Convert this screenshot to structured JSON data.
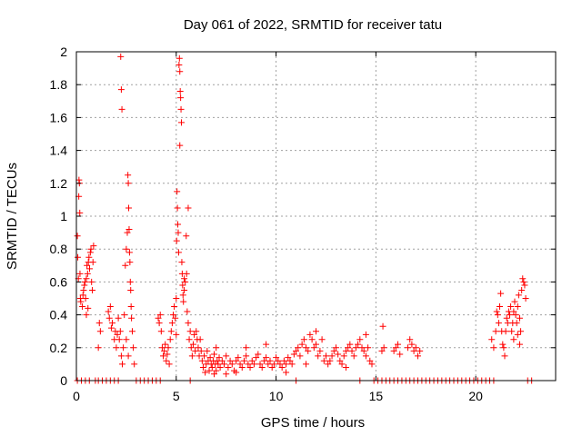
{
  "chart_data": {
    "type": "scatter",
    "title": "Day 061 of 2022, SRMTID for receiver tatu",
    "xlabel": "GPS time / hours",
    "ylabel": "SRMTID / TECUs",
    "xlim": [
      0,
      24
    ],
    "ylim": [
      0,
      2
    ],
    "xticks": [
      0,
      5,
      10,
      15,
      20
    ],
    "yticks": [
      0,
      0.2,
      0.4,
      0.6,
      0.8,
      1,
      1.2,
      1.4,
      1.6,
      1.8,
      2
    ],
    "xtick_labels": [
      "0",
      "5",
      "10",
      "15",
      "20"
    ],
    "ytick_labels": [
      "0",
      "0.2",
      "0.4",
      "0.6",
      "0.8",
      "1",
      "1.2",
      "1.4",
      "1.6",
      "1.8",
      "2"
    ],
    "grid": true,
    "marker": "+",
    "color": "#ff0000",
    "points": [
      [
        0.05,
        0.88
      ],
      [
        0.07,
        0.75
      ],
      [
        0.1,
        0.62
      ],
      [
        0.12,
        1.12
      ],
      [
        0.13,
        1.22
      ],
      [
        0.15,
        1.2
      ],
      [
        0.17,
        1.02
      ],
      [
        0.18,
        0.65
      ],
      [
        0.2,
        0.5
      ],
      [
        0.22,
        0.48
      ],
      [
        0.3,
        0.45
      ],
      [
        0.33,
        0.52
      ],
      [
        0.36,
        0.55
      ],
      [
        0.4,
        0.58
      ],
      [
        0.43,
        0.6
      ],
      [
        0.46,
        0.5
      ],
      [
        0.5,
        0.62
      ],
      [
        0.53,
        0.7
      ],
      [
        0.56,
        0.65
      ],
      [
        0.6,
        0.72
      ],
      [
        0.63,
        0.75
      ],
      [
        0.66,
        0.68
      ],
      [
        0.7,
        0.78
      ],
      [
        0.73,
        0.8
      ],
      [
        0.76,
        0.6
      ],
      [
        0.8,
        0.55
      ],
      [
        0.83,
        0.72
      ],
      [
        0.86,
        0.82
      ],
      [
        0.5,
        0.4
      ],
      [
        0.58,
        0.44
      ],
      [
        1.1,
        0.2
      ],
      [
        1.15,
        0.35
      ],
      [
        1.2,
        0.3
      ],
      [
        1.6,
        0.42
      ],
      [
        1.65,
        0.38
      ],
      [
        1.7,
        0.45
      ],
      [
        1.75,
        0.32
      ],
      [
        1.8,
        0.35
      ],
      [
        1.9,
        0.25
      ],
      [
        1.95,
        0.3
      ],
      [
        2.0,
        0.2
      ],
      [
        2.05,
        0.28
      ],
      [
        2.1,
        0.38
      ],
      [
        2.15,
        0.25
      ],
      [
        2.2,
        0.3
      ],
      [
        2.25,
        0.15
      ],
      [
        2.3,
        0.1
      ],
      [
        2.35,
        0.2
      ],
      [
        2.22,
        1.97
      ],
      [
        2.25,
        1.77
      ],
      [
        2.28,
        1.65
      ],
      [
        2.4,
        0.4
      ],
      [
        2.45,
        0.7
      ],
      [
        2.5,
        0.8
      ],
      [
        2.55,
        0.9
      ],
      [
        2.58,
        1.25
      ],
      [
        2.6,
        1.2
      ],
      [
        2.62,
        1.05
      ],
      [
        2.64,
        0.92
      ],
      [
        2.66,
        0.78
      ],
      [
        2.68,
        0.72
      ],
      [
        2.7,
        0.6
      ],
      [
        2.72,
        0.55
      ],
      [
        2.74,
        0.45
      ],
      [
        2.76,
        0.38
      ],
      [
        2.8,
        0.3
      ],
      [
        2.85,
        0.2
      ],
      [
        2.9,
        0.1
      ],
      [
        2.5,
        0.25
      ],
      [
        2.6,
        0.15
      ],
      [
        4.1,
        0.38
      ],
      [
        4.15,
        0.35
      ],
      [
        4.2,
        0.4
      ],
      [
        4.25,
        0.3
      ],
      [
        4.3,
        0.2
      ],
      [
        4.35,
        0.15
      ],
      [
        4.4,
        0.18
      ],
      [
        4.45,
        0.22
      ],
      [
        4.5,
        0.12
      ],
      [
        4.55,
        0.16
      ],
      [
        4.6,
        0.2
      ],
      [
        4.65,
        0.1
      ],
      [
        4.7,
        0.25
      ],
      [
        4.75,
        0.3
      ],
      [
        4.8,
        0.35
      ],
      [
        4.85,
        0.4
      ],
      [
        4.9,
        0.45
      ],
      [
        4.95,
        0.38
      ],
      [
        5.0,
        0.5
      ],
      [
        5.02,
        0.85
      ],
      [
        5.04,
        1.15
      ],
      [
        5.06,
        1.05
      ],
      [
        5.08,
        0.95
      ],
      [
        5.1,
        0.9
      ],
      [
        5.12,
        0.78
      ],
      [
        5.14,
        1.92
      ],
      [
        5.16,
        1.96
      ],
      [
        5.18,
        1.88
      ],
      [
        5.2,
        1.76
      ],
      [
        5.22,
        1.72
      ],
      [
        5.24,
        1.65
      ],
      [
        5.26,
        1.57
      ],
      [
        5.18,
        1.43
      ],
      [
        5.28,
        0.72
      ],
      [
        5.3,
        0.65
      ],
      [
        5.32,
        0.58
      ],
      [
        5.34,
        0.52
      ],
      [
        5.36,
        0.48
      ],
      [
        5.4,
        0.55
      ],
      [
        5.45,
        0.6
      ],
      [
        5.5,
        0.88
      ],
      [
        5.52,
        0.65
      ],
      [
        5.55,
        0.42
      ],
      [
        5.6,
        0.35
      ],
      [
        5.65,
        0.25
      ],
      [
        5.7,
        0.3
      ],
      [
        5.75,
        0.2
      ],
      [
        5.8,
        0.15
      ],
      [
        5.85,
        0.22
      ],
      [
        5.9,
        0.28
      ],
      [
        5.95,
        0.18
      ],
      [
        6.0,
        0.3
      ],
      [
        6.05,
        0.25
      ],
      [
        6.1,
        0.2
      ],
      [
        6.15,
        0.15
      ],
      [
        6.2,
        0.25
      ],
      [
        6.25,
        0.18
      ],
      [
        5.6,
        1.05
      ],
      [
        5.4,
        0.62
      ],
      [
        5.0,
        0.28
      ],
      [
        6.3,
        0.12
      ],
      [
        6.35,
        0.08
      ],
      [
        6.4,
        0.15
      ],
      [
        6.45,
        0.05
      ],
      [
        6.5,
        0.1
      ],
      [
        6.55,
        0.18
      ],
      [
        6.6,
        0.12
      ],
      [
        6.65,
        0.06
      ],
      [
        6.7,
        0.14
      ],
      [
        6.75,
        0.1
      ],
      [
        6.8,
        0.08
      ],
      [
        6.85,
        0.12
      ],
      [
        6.9,
        0.16
      ],
      [
        6.95,
        0.1
      ],
      [
        7.0,
        0.06
      ],
      [
        7.05,
        0.12
      ],
      [
        7.1,
        0.1
      ],
      [
        7.15,
        0.14
      ],
      [
        7.2,
        0.08
      ],
      [
        7.3,
        0.12
      ],
      [
        7.4,
        0.1
      ],
      [
        7.5,
        0.15
      ],
      [
        7.6,
        0.08
      ],
      [
        7.7,
        0.12
      ],
      [
        7.8,
        0.1
      ],
      [
        7.9,
        0.06
      ],
      [
        8.0,
        0.12
      ],
      [
        8.1,
        0.14
      ],
      [
        8.2,
        0.1
      ],
      [
        8.3,
        0.08
      ],
      [
        8.4,
        0.12
      ],
      [
        8.5,
        0.15
      ],
      [
        8.6,
        0.1
      ],
      [
        8.7,
        0.08
      ],
      [
        8.8,
        0.12
      ],
      [
        8.9,
        0.1
      ],
      [
        9.0,
        0.14
      ],
      [
        9.1,
        0.16
      ],
      [
        9.2,
        0.1
      ],
      [
        9.3,
        0.08
      ],
      [
        9.4,
        0.12
      ],
      [
        9.5,
        0.14
      ],
      [
        9.6,
        0.1
      ],
      [
        9.7,
        0.12
      ],
      [
        9.8,
        0.08
      ],
      [
        9.9,
        0.1
      ],
      [
        10.0,
        0.14
      ],
      [
        10.1,
        0.12
      ],
      [
        10.2,
        0.1
      ],
      [
        10.3,
        0.08
      ],
      [
        10.4,
        0.12
      ],
      [
        10.5,
        0.1
      ],
      [
        10.6,
        0.14
      ],
      [
        10.7,
        0.12
      ],
      [
        10.8,
        0.1
      ],
      [
        10.9,
        0.16
      ],
      [
        11.0,
        0.18
      ],
      [
        11.1,
        0.2
      ],
      [
        11.2,
        0.15
      ],
      [
        11.3,
        0.22
      ],
      [
        11.4,
        0.25
      ],
      [
        11.5,
        0.2
      ],
      [
        11.6,
        0.18
      ],
      [
        11.7,
        0.28
      ],
      [
        11.8,
        0.25
      ],
      [
        11.9,
        0.2
      ],
      [
        12.0,
        0.22
      ],
      [
        12.1,
        0.15
      ],
      [
        12.2,
        0.18
      ],
      [
        12.3,
        0.25
      ],
      [
        12.4,
        0.12
      ],
      [
        12.5,
        0.15
      ],
      [
        12.6,
        0.1
      ],
      [
        12.7,
        0.12
      ],
      [
        12.8,
        0.15
      ],
      [
        12.9,
        0.18
      ],
      [
        13.0,
        0.2
      ],
      [
        13.1,
        0.16
      ],
      [
        13.2,
        0.12
      ],
      [
        13.3,
        0.1
      ],
      [
        13.4,
        0.15
      ],
      [
        13.5,
        0.18
      ],
      [
        13.6,
        0.2
      ],
      [
        13.7,
        0.22
      ],
      [
        13.8,
        0.18
      ],
      [
        13.9,
        0.15
      ],
      [
        14.0,
        0.2
      ],
      [
        14.1,
        0.22
      ],
      [
        14.2,
        0.25
      ],
      [
        14.3,
        0.2
      ],
      [
        14.4,
        0.18
      ],
      [
        14.5,
        0.15
      ],
      [
        14.6,
        0.2
      ],
      [
        14.7,
        0.12
      ],
      [
        14.8,
        0.1
      ],
      [
        15.3,
        0.18
      ],
      [
        15.35,
        0.33
      ],
      [
        15.4,
        0.2
      ],
      [
        15.9,
        0.18
      ],
      [
        16.0,
        0.2
      ],
      [
        16.1,
        0.22
      ],
      [
        16.2,
        0.16
      ],
      [
        16.6,
        0.2
      ],
      [
        16.7,
        0.25
      ],
      [
        16.8,
        0.22
      ],
      [
        16.9,
        0.18
      ],
      [
        17.0,
        0.2
      ],
      [
        17.1,
        0.15
      ],
      [
        17.2,
        0.18
      ],
      [
        7.0,
        0.2
      ],
      [
        8.0,
        0.05
      ],
      [
        9.5,
        0.22
      ],
      [
        10.5,
        0.05
      ],
      [
        12.0,
        0.3
      ],
      [
        13.5,
        0.08
      ],
      [
        14.5,
        0.28
      ],
      [
        11.5,
        0.1
      ],
      [
        8.5,
        0.2
      ],
      [
        6.9,
        0.04
      ],
      [
        7.5,
        0.04
      ],
      [
        20.8,
        0.25
      ],
      [
        20.9,
        0.2
      ],
      [
        21.0,
        0.3
      ],
      [
        21.05,
        0.42
      ],
      [
        21.1,
        0.4
      ],
      [
        21.15,
        0.35
      ],
      [
        21.2,
        0.45
      ],
      [
        21.25,
        0.53
      ],
      [
        21.3,
        0.3
      ],
      [
        21.35,
        0.22
      ],
      [
        21.4,
        0.2
      ],
      [
        21.45,
        0.15
      ],
      [
        21.5,
        0.3
      ],
      [
        21.55,
        0.38
      ],
      [
        21.6,
        0.35
      ],
      [
        21.65,
        0.42
      ],
      [
        21.7,
        0.4
      ],
      [
        21.75,
        0.45
      ],
      [
        21.8,
        0.3
      ],
      [
        21.85,
        0.35
      ],
      [
        21.9,
        0.42
      ],
      [
        21.95,
        0.48
      ],
      [
        22.0,
        0.4
      ],
      [
        22.05,
        0.35
      ],
      [
        22.1,
        0.45
      ],
      [
        22.15,
        0.52
      ],
      [
        22.2,
        0.38
      ],
      [
        22.25,
        0.3
      ],
      [
        22.3,
        0.55
      ],
      [
        22.35,
        0.62
      ],
      [
        22.4,
        0.6
      ],
      [
        22.45,
        0.58
      ],
      [
        22.5,
        0.5
      ],
      [
        22.1,
        0.28
      ],
      [
        21.9,
        0.25
      ],
      [
        22.2,
        0.22
      ],
      [
        0.05,
        0
      ],
      [
        0.25,
        0
      ],
      [
        0.45,
        0
      ],
      [
        0.65,
        0
      ],
      [
        0.95,
        0
      ],
      [
        1.1,
        0
      ],
      [
        1.3,
        0
      ],
      [
        1.5,
        0
      ],
      [
        1.7,
        0
      ],
      [
        1.9,
        0
      ],
      [
        2.1,
        0
      ],
      [
        3.0,
        0
      ],
      [
        3.2,
        0
      ],
      [
        3.4,
        0
      ],
      [
        3.6,
        0
      ],
      [
        3.8,
        0
      ],
      [
        4.0,
        0
      ],
      [
        4.2,
        0
      ],
      [
        5.7,
        0
      ],
      [
        11.0,
        0
      ],
      [
        14.2,
        0
      ],
      [
        14.9,
        0
      ],
      [
        15.1,
        0
      ],
      [
        15.3,
        0
      ],
      [
        15.5,
        0
      ],
      [
        15.7,
        0
      ],
      [
        15.9,
        0
      ],
      [
        16.1,
        0
      ],
      [
        16.3,
        0
      ],
      [
        16.5,
        0
      ],
      [
        16.7,
        0
      ],
      [
        16.9,
        0
      ],
      [
        17.1,
        0
      ],
      [
        17.3,
        0
      ],
      [
        17.5,
        0
      ],
      [
        17.7,
        0
      ],
      [
        17.9,
        0
      ],
      [
        18.1,
        0
      ],
      [
        18.3,
        0
      ],
      [
        18.5,
        0
      ],
      [
        18.7,
        0
      ],
      [
        18.9,
        0
      ],
      [
        19.1,
        0
      ],
      [
        19.3,
        0
      ],
      [
        19.5,
        0
      ],
      [
        19.7,
        0
      ],
      [
        19.9,
        0
      ],
      [
        20.1,
        0
      ],
      [
        20.3,
        0
      ],
      [
        20.5,
        0
      ],
      [
        20.7,
        0
      ],
      [
        20.9,
        0
      ],
      [
        22.6,
        0
      ],
      [
        22.8,
        0
      ]
    ]
  }
}
